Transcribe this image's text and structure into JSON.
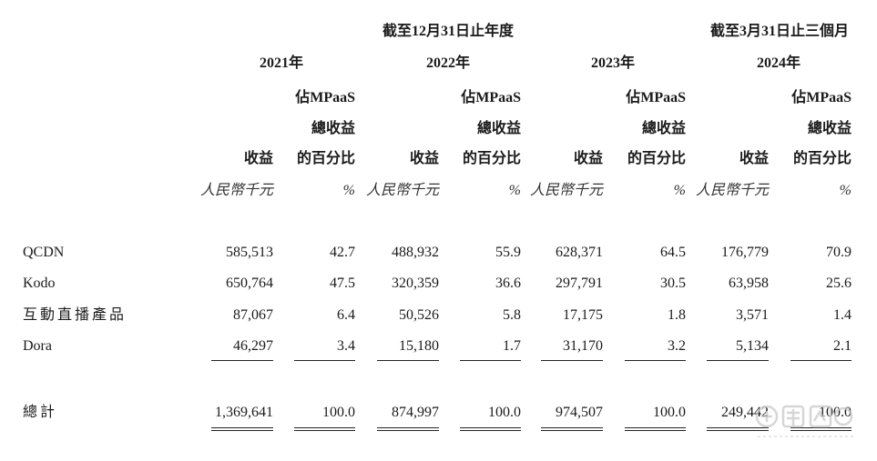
{
  "headers": {
    "period_year": "截至12月31日止年度",
    "period_quarter": "截至3月31日止三個月",
    "years": [
      "2021年",
      "2022年",
      "2023年",
      "2024年"
    ],
    "pct_line1": "佔MPaaS",
    "pct_line2": "總收益",
    "pct_line3": "的百分比",
    "revenue": "收益",
    "unit_rmb": "人民幣千元",
    "unit_pct": "%"
  },
  "rows": [
    {
      "label": "QCDN",
      "values": [
        "585,513",
        "42.7",
        "488,932",
        "55.9",
        "628,371",
        "64.5",
        "176,779",
        "70.9"
      ]
    },
    {
      "label": "Kodo",
      "values": [
        "650,764",
        "47.5",
        "320,359",
        "36.6",
        "297,791",
        "30.5",
        "63,958",
        "25.6"
      ]
    },
    {
      "label": "互動直播產品",
      "values": [
        "87,067",
        "6.4",
        "50,526",
        "5.8",
        "17,175",
        "1.8",
        "3,571",
        "1.4"
      ]
    },
    {
      "label": "Dora",
      "values": [
        "46,297",
        "3.4",
        "15,180",
        "1.7",
        "31,170",
        "3.2",
        "5,134",
        "2.1"
      ]
    }
  ],
  "total": {
    "label": "總計",
    "values": [
      "1,369,641",
      "100.0",
      "874,997",
      "100.0",
      "974,507",
      "100.0",
      "249,442",
      "100.0"
    ]
  }
}
